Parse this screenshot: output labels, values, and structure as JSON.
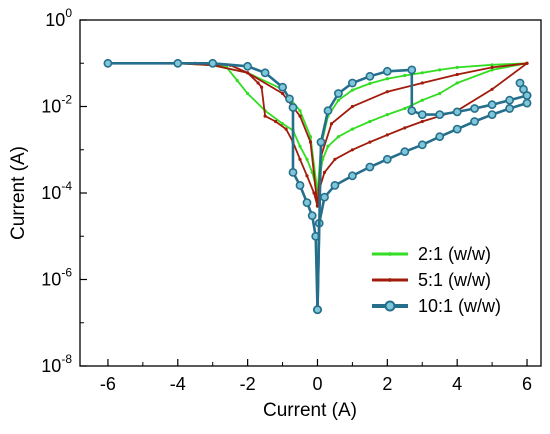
{
  "chart_data": {
    "type": "line",
    "xlabel": "Current (A)",
    "ylabel": "Current (A)",
    "xlim": [
      -6.8,
      6.4
    ],
    "ylim_log10": [
      -8,
      0
    ],
    "y_scale": "log",
    "grid": false,
    "legend_position": "bottom-right",
    "x_tick_labels": [
      "-6",
      "-4",
      "-2",
      "0",
      "2",
      "4",
      "6"
    ],
    "y_tick_labels": [
      {
        "base": "10",
        "exp": "0"
      },
      {
        "base": "10",
        "exp": "-2"
      },
      {
        "base": "10",
        "exp": "-4"
      },
      {
        "base": "10",
        "exp": "-6"
      },
      {
        "base": "10",
        "exp": "-8"
      }
    ],
    "series": [
      {
        "name": "2:1 (w/w)",
        "color": "#33dd22",
        "marker": "small-dot",
        "branches": [
          {
            "x": [
              -6,
              -4,
              -3,
              -2.6,
              -2.3,
              -2.0,
              -1.5,
              -1.0,
              -0.7,
              -0.5,
              -0.3,
              -0.15,
              -0.05,
              0
            ],
            "y": [
              0.1,
              0.1,
              0.095,
              0.08,
              0.04,
              0.02,
              0.008,
              0.004,
              0.0028,
              0.0012,
              0.0006,
              0.0003,
              0.00015,
              0.0001
            ]
          },
          {
            "x": [
              0,
              0.05,
              0.15,
              0.3,
              0.6,
              1.0,
              1.5,
              2.0,
              2.5,
              3.0,
              3.5,
              4.0,
              5.0,
              6.0
            ],
            "y": [
              0.0001,
              0.0002,
              0.0006,
              0.0012,
              0.002,
              0.003,
              0.0045,
              0.0065,
              0.009,
              0.014,
              0.02,
              0.035,
              0.07,
              0.1
            ]
          },
          {
            "x": [
              0,
              0.1,
              0.3,
              0.6,
              1.0,
              1.5,
              2.0,
              2.5,
              3.0,
              3.5,
              4.0,
              5.0,
              6.0
            ],
            "y": [
              0.0001,
              0.0012,
              0.006,
              0.014,
              0.024,
              0.034,
              0.044,
              0.052,
              0.06,
              0.07,
              0.08,
              0.092,
              0.1
            ]
          },
          {
            "x": [
              -6,
              -4,
              -3,
              -2,
              -1,
              -0.5,
              -0.2,
              0
            ],
            "y": [
              0.1,
              0.1,
              0.09,
              0.06,
              0.025,
              0.008,
              0.002,
              0.0001
            ]
          }
        ]
      },
      {
        "name": "5:1 (w/w)",
        "color": "#a11c0c",
        "marker": "small-dot",
        "branches": [
          {
            "x": [
              -6,
              -3.5,
              -2.5,
              -2.0,
              -1.7,
              -1.6,
              -1.5,
              -1.2,
              -0.9,
              -0.7,
              -0.5,
              -0.3,
              -0.1,
              0
            ],
            "y": [
              0.1,
              0.1,
              0.09,
              0.06,
              0.035,
              0.028,
              0.006,
              0.0045,
              0.003,
              0.0015,
              0.0006,
              0.00025,
              0.0001,
              5e-05
            ]
          },
          {
            "x": [
              0,
              0.05,
              0.2,
              0.5,
              1.0,
              1.5,
              2.0,
              2.5,
              3.0,
              4.0,
              5.0,
              6.0
            ],
            "y": [
              5e-05,
              0.00012,
              0.0003,
              0.0006,
              0.001,
              0.0015,
              0.0022,
              0.0032,
              0.0045,
              0.008,
              0.025,
              0.1
            ]
          },
          {
            "x": [
              0,
              0.1,
              0.4,
              1.0,
              2.0,
              3.0,
              4.0,
              5.0,
              6.0
            ],
            "y": [
              5e-05,
              0.0007,
              0.004,
              0.01,
              0.022,
              0.035,
              0.055,
              0.08,
              0.1
            ]
          },
          {
            "x": [
              -6,
              -4,
              -3,
              -2,
              -1,
              -0.5,
              -0.2,
              0
            ],
            "y": [
              0.1,
              0.1,
              0.09,
              0.06,
              0.02,
              0.006,
              0.0015,
              5e-05
            ]
          }
        ]
      },
      {
        "name": "10:1 (w/w)",
        "color": "#266f8c",
        "marker": "large-dot",
        "branches": [
          {
            "x": [
              -6,
              -4,
              -3,
              -2,
              -1.5,
              -1.0,
              -0.8,
              -0.7,
              -0.7,
              -0.5,
              -0.3,
              -0.15,
              -0.05,
              0
            ],
            "y": [
              0.1,
              0.1,
              0.1,
              0.085,
              0.06,
              0.028,
              0.015,
              0.0095,
              0.0003,
              0.00015,
              6e-05,
              3e-05,
              1e-05,
              2e-07
            ]
          },
          {
            "x": [
              0,
              0.05,
              0.2,
              0.5,
              1.0,
              1.5,
              2.0,
              2.5,
              3.0,
              3.5,
              4.0,
              4.5,
              5.0,
              5.5,
              6.0
            ],
            "y": [
              2e-07,
              2e-05,
              8e-05,
              0.00015,
              0.00025,
              0.0004,
              0.0006,
              0.0009,
              0.0013,
              0.002,
              0.003,
              0.0045,
              0.0065,
              0.009,
              0.012
            ]
          },
          {
            "x": [
              6.0,
              5.5,
              5.0,
              4.5,
              4.0,
              3.5,
              3.0,
              2.7,
              2.7,
              2.0,
              1.5,
              1.0,
              0.6,
              0.3,
              0.1,
              0
            ],
            "y": [
              0.018,
              0.014,
              0.011,
              0.009,
              0.0075,
              0.0065,
              0.0065,
              0.008,
              0.07,
              0.065,
              0.05,
              0.035,
              0.02,
              0.008,
              0.0015,
              2e-07
            ]
          },
          {
            "x": [
              5.8,
              5.9,
              6.0
            ],
            "y": [
              0.035,
              0.025,
              0.018
            ]
          }
        ]
      }
    ]
  }
}
